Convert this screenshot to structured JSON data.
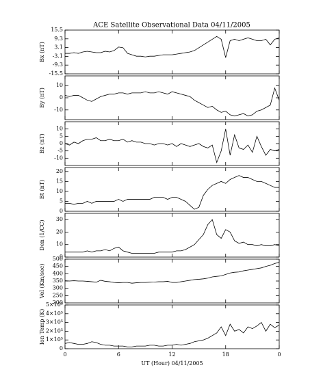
{
  "chart_data": [
    {
      "type": "line",
      "title": "ACE Satellite Observational Data   04/11/2005",
      "ylabel": "Bx (nT)",
      "color": "#000000",
      "x": [
        0,
        0.5,
        1,
        1.5,
        2,
        2.5,
        3,
        3.5,
        4,
        4.5,
        5,
        5.5,
        6,
        6.5,
        7,
        7.5,
        8,
        8.5,
        9,
        9.5,
        10,
        10.5,
        11,
        11.5,
        12,
        12.5,
        13,
        13.5,
        14,
        14.5,
        15,
        15.5,
        16,
        16.5,
        17,
        17.5,
        18,
        18.5,
        19,
        19.5,
        20,
        20.5,
        21,
        21.5,
        22,
        22.5,
        23,
        23.5,
        24
      ],
      "values": [
        -1,
        -1,
        -0.5,
        -1,
        0,
        0.5,
        0,
        -0.5,
        -0.5,
        0.5,
        0,
        1,
        3.5,
        3,
        -1,
        -2,
        -3,
        -3,
        -3.5,
        -3,
        -3,
        -2.5,
        -2,
        -2,
        -2,
        -1.5,
        -1,
        -0.5,
        0,
        1,
        3,
        5,
        7,
        9,
        11,
        9,
        -4,
        8,
        9,
        8,
        9,
        10,
        9,
        8,
        8,
        9,
        5,
        9,
        10
      ],
      "xlim": [
        0,
        24
      ],
      "xticks": [
        0,
        6,
        12,
        18,
        {
          "value": 24,
          "label": "0"
        }
      ],
      "ylim": [
        -15.5,
        15.5
      ],
      "yticks": [
        15.5,
        9.3,
        3.1,
        -3.1,
        -9.3,
        -15.5
      ]
    },
    {
      "type": "line",
      "ylabel": "By (nT)",
      "color": "#000000",
      "x": [
        0,
        0.5,
        1,
        1.5,
        2,
        2.5,
        3,
        3.5,
        4,
        4.5,
        5,
        5.5,
        6,
        6.5,
        7,
        7.5,
        8,
        8.5,
        9,
        9.5,
        10,
        10.5,
        11,
        11.5,
        12,
        12.5,
        13,
        13.5,
        14,
        14.5,
        15,
        15.5,
        16,
        16.5,
        17,
        17.5,
        18,
        18.5,
        19,
        19.5,
        20,
        20.5,
        21,
        21.5,
        22,
        22.5,
        23,
        23.5,
        24
      ],
      "values": [
        2,
        1,
        2,
        2,
        0,
        -2,
        -3,
        -1,
        1,
        2,
        3,
        3,
        4,
        4,
        3,
        4,
        4,
        4,
        5,
        4,
        4,
        5,
        4,
        3,
        5,
        4,
        3,
        2,
        1,
        -2,
        -4,
        -6,
        -8,
        -7,
        -10,
        -12,
        -11,
        -14,
        -15,
        -14,
        -13,
        -15,
        -14,
        -11,
        -10,
        -8,
        -6,
        8,
        -2
      ],
      "xlim": [
        0,
        24
      ],
      "xticks": [
        0,
        6,
        12,
        18,
        {
          "value": 24,
          "label": "0"
        }
      ],
      "ylim": [
        -18,
        18
      ],
      "yticks": [
        10,
        0,
        -10
      ]
    },
    {
      "type": "line",
      "ylabel": "Bz (nT)",
      "color": "#000000",
      "x": [
        0,
        0.5,
        1,
        1.5,
        2,
        2.5,
        3,
        3.5,
        4,
        4.5,
        5,
        5.5,
        6,
        6.5,
        7,
        7.5,
        8,
        8.5,
        9,
        9.5,
        10,
        10.5,
        11,
        11.5,
        12,
        12.5,
        13,
        13.5,
        14,
        14.5,
        15,
        15.5,
        16,
        16.5,
        17,
        17.5,
        18,
        18.5,
        19,
        19.5,
        20,
        20.5,
        21,
        21.5,
        22,
        22.5,
        23,
        23.5,
        24
      ],
      "values": [
        0,
        -1,
        1,
        0,
        2,
        3,
        3,
        4,
        2,
        2,
        3,
        2,
        2,
        3,
        1,
        2,
        1,
        1,
        0,
        0,
        -1,
        0,
        0,
        -1,
        0,
        -2,
        0,
        -1,
        -2,
        -1,
        0,
        -2,
        -3,
        -1,
        -13,
        -5,
        10,
        -8,
        6,
        -3,
        -4,
        -1,
        -6,
        5,
        -2,
        -8,
        -4,
        -5,
        -4
      ],
      "xlim": [
        0,
        24
      ],
      "xticks": [
        0,
        6,
        12,
        18,
        {
          "value": 24,
          "label": "0"
        }
      ],
      "ylim": [
        -15,
        15
      ],
      "yticks": [
        10,
        5,
        0,
        -5,
        -10
      ]
    },
    {
      "type": "line",
      "ylabel": "Bt (nT)",
      "color": "#000000",
      "x": [
        0,
        0.5,
        1,
        1.5,
        2,
        2.5,
        3,
        3.5,
        4,
        4.5,
        5,
        5.5,
        6,
        6.5,
        7,
        7.5,
        8,
        8.5,
        9,
        9.5,
        10,
        10.5,
        11,
        11.5,
        12,
        12.5,
        13,
        13.5,
        14,
        14.5,
        15,
        15.5,
        16,
        16.5,
        17,
        17.5,
        18,
        18.5,
        19,
        19.5,
        20,
        20.5,
        21,
        21.5,
        22,
        22.5,
        23,
        23.5,
        24
      ],
      "values": [
        4,
        4,
        3.5,
        4,
        4,
        5,
        4,
        5,
        5,
        5,
        5,
        5,
        6,
        5,
        6,
        6,
        6,
        6,
        6,
        6,
        7,
        7,
        7,
        6,
        7,
        7,
        6,
        5,
        3,
        1,
        2,
        8,
        11,
        13,
        14,
        15,
        14,
        16,
        17,
        18,
        17,
        17,
        16,
        15,
        15,
        14,
        13,
        12,
        12
      ],
      "xlim": [
        0,
        24
      ],
      "xticks": [
        0,
        6,
        12,
        18,
        {
          "value": 24,
          "label": "0"
        }
      ],
      "ylim": [
        0,
        22
      ],
      "yticks": [
        20,
        15,
        10,
        5,
        0
      ]
    },
    {
      "type": "line",
      "ylabel": "Den (1/CC)",
      "color": "#000000",
      "x": [
        0,
        0.5,
        1,
        1.5,
        2,
        2.5,
        3,
        3.5,
        4,
        4.5,
        5,
        5.5,
        6,
        6.5,
        7,
        7.5,
        8,
        8.5,
        9,
        9.5,
        10,
        10.5,
        11,
        11.5,
        12,
        12.5,
        13,
        13.5,
        14,
        14.5,
        15,
        15.5,
        16,
        16.5,
        17,
        17.5,
        18,
        18.5,
        19,
        19.5,
        20,
        20.5,
        21,
        21.5,
        22,
        22.5,
        23,
        23.5,
        24
      ],
      "values": [
        4,
        4,
        4,
        4,
        4,
        5,
        4,
        5,
        5,
        6,
        5,
        7,
        8,
        5,
        4,
        3,
        3,
        3,
        3,
        3,
        3,
        4,
        4,
        4,
        4,
        5,
        5,
        6,
        8,
        10,
        14,
        18,
        26,
        30,
        18,
        15,
        22,
        20,
        13,
        11,
        12,
        10,
        10,
        9,
        10,
        9,
        9,
        10,
        9
      ],
      "xlim": [
        0,
        24
      ],
      "xticks": [
        0,
        6,
        12,
        18,
        {
          "value": 24,
          "label": "0"
        }
      ],
      "ylim": [
        0,
        35
      ],
      "yticks": [
        30,
        20,
        10,
        0
      ]
    },
    {
      "type": "line",
      "ylabel": "Vel (Km/sec)",
      "color": "#000000",
      "x": [
        0,
        0.5,
        1,
        1.5,
        2,
        2.5,
        3,
        3.5,
        4,
        4.5,
        5,
        5.5,
        6,
        6.5,
        7,
        7.5,
        8,
        8.5,
        9,
        9.5,
        10,
        10.5,
        11,
        11.5,
        12,
        12.5,
        13,
        13.5,
        14,
        14.5,
        15,
        15.5,
        16,
        16.5,
        17,
        17.5,
        18,
        18.5,
        19,
        19.5,
        20,
        20.5,
        21,
        21.5,
        22,
        22.5,
        23,
        23.5,
        24
      ],
      "values": [
        352,
        350,
        352,
        350,
        350,
        348,
        345,
        342,
        355,
        348,
        345,
        340,
        338,
        340,
        340,
        335,
        338,
        340,
        340,
        342,
        343,
        345,
        345,
        348,
        340,
        340,
        345,
        350,
        355,
        360,
        362,
        365,
        370,
        378,
        382,
        385,
        395,
        405,
        410,
        412,
        420,
        425,
        430,
        435,
        440,
        450,
        458,
        470,
        478
      ],
      "xlim": [
        0,
        24
      ],
      "xticks": [
        0,
        6,
        12,
        18,
        {
          "value": 24,
          "label": "0"
        }
      ],
      "ylim": [
        200,
        500
      ],
      "yticks": [
        500,
        450,
        400,
        350,
        300,
        250,
        200
      ]
    },
    {
      "type": "line",
      "ylabel": "Ion Temp (K)",
      "xlabel": "UT (Hour)   04/11/2005",
      "color": "#000000",
      "x": [
        0,
        0.5,
        1,
        1.5,
        2,
        2.5,
        3,
        3.5,
        4,
        4.5,
        5,
        5.5,
        6,
        6.5,
        7,
        7.5,
        8,
        8.5,
        9,
        9.5,
        10,
        10.5,
        11,
        11.5,
        12,
        12.5,
        13,
        13.5,
        14,
        14.5,
        15,
        15.5,
        16,
        16.5,
        17,
        17.5,
        18,
        18.5,
        19,
        19.5,
        20,
        20.5,
        21,
        21.5,
        22,
        22.5,
        23,
        23.5,
        24
      ],
      "values": [
        60000,
        70000,
        60000,
        50000,
        50000,
        60000,
        80000,
        70000,
        50000,
        40000,
        40000,
        30000,
        30000,
        30000,
        20000,
        20000,
        30000,
        30000,
        30000,
        40000,
        40000,
        30000,
        30000,
        40000,
        40000,
        50000,
        40000,
        50000,
        60000,
        80000,
        90000,
        100000,
        120000,
        150000,
        180000,
        250000,
        150000,
        280000,
        200000,
        220000,
        180000,
        250000,
        230000,
        260000,
        300000,
        200000,
        280000,
        240000,
        270000
      ],
      "xlim": [
        0,
        24
      ],
      "xticks": [
        0,
        6,
        12,
        18,
        {
          "value": 24,
          "label": "0"
        }
      ],
      "ylim": [
        0,
        500000
      ],
      "yticks": [
        {
          "value": 500000,
          "label": "5×10⁵"
        },
        {
          "value": 400000,
          "label": "4×10⁵"
        },
        {
          "value": 300000,
          "label": "3×10⁵"
        },
        {
          "value": 200000,
          "label": "2×10⁵"
        },
        {
          "value": 100000,
          "label": "1×10⁵"
        },
        0
      ]
    }
  ]
}
